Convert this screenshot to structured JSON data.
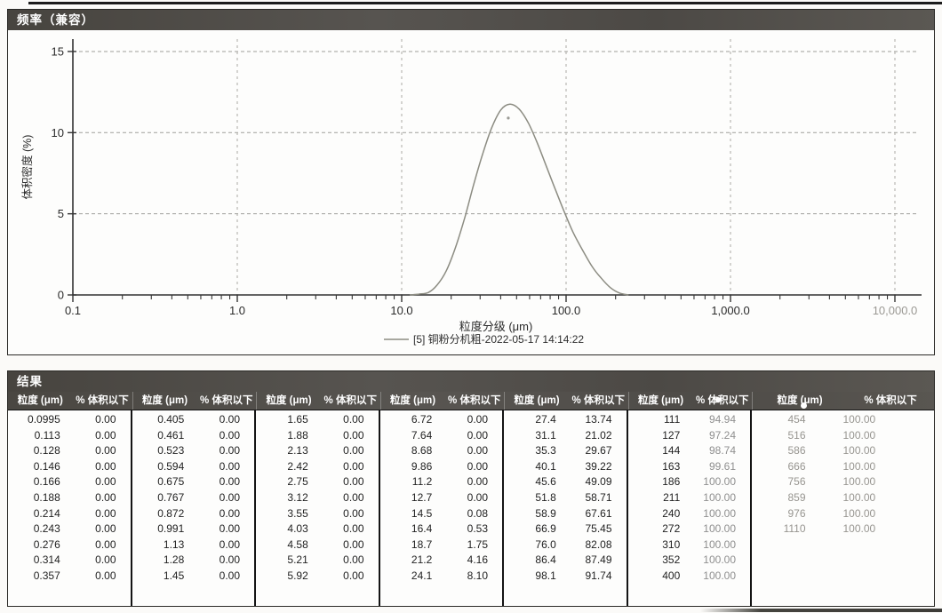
{
  "chart_data": [
    {
      "type": "line",
      "title": "频率（兼容）",
      "xlabel": "粒度分级 (μm)",
      "ylabel": "体积密度 (%)",
      "x_scale": "log",
      "xlim": [
        0.1,
        10000
      ],
      "ylim": [
        0,
        15
      ],
      "x_ticks": [
        "0.1",
        "1.0",
        "10.0",
        "100.0",
        "1,000.0",
        "10,000.0"
      ],
      "y_ticks": [
        "0",
        "5",
        "10",
        "15"
      ],
      "grid": true,
      "legend_position": "bottom-center",
      "series": [
        {
          "name": "[5] 铜粉分机粗-2022-05-17 14:14:22",
          "color": "#8c8c82",
          "points": [
            [
              11.2,
              0
            ],
            [
              12.7,
              0.05
            ],
            [
              14.5,
              0.15
            ],
            [
              16.4,
              0.6
            ],
            [
              18.7,
              1.5
            ],
            [
              21.2,
              2.9
            ],
            [
              24.1,
              4.7
            ],
            [
              27.4,
              6.8
            ],
            [
              31.1,
              8.7
            ],
            [
              35.3,
              10.3
            ],
            [
              40.1,
              11.4
            ],
            [
              45.6,
              11.75
            ],
            [
              51.8,
              11.45
            ],
            [
              58.9,
              10.6
            ],
            [
              66.9,
              9.35
            ],
            [
              76.0,
              7.9
            ],
            [
              86.4,
              6.45
            ],
            [
              98.1,
              5.05
            ],
            [
              111,
              3.8
            ],
            [
              127,
              2.7
            ],
            [
              144,
              1.75
            ],
            [
              163,
              1.05
            ],
            [
              186,
              0.45
            ],
            [
              211,
              0.12
            ],
            [
              240,
              0
            ]
          ]
        }
      ]
    },
    {
      "type": "table",
      "title": "结果",
      "columns": [
        "粒度 (μm)",
        "% 体积以下"
      ],
      "column_groups": [
        [
          [
            "0.0995",
            "0.00"
          ],
          [
            "0.113",
            "0.00"
          ],
          [
            "0.128",
            "0.00"
          ],
          [
            "0.146",
            "0.00"
          ],
          [
            "0.166",
            "0.00"
          ],
          [
            "0.188",
            "0.00"
          ],
          [
            "0.214",
            "0.00"
          ],
          [
            "0.243",
            "0.00"
          ],
          [
            "0.276",
            "0.00"
          ],
          [
            "0.314",
            "0.00"
          ],
          [
            "0.357",
            "0.00"
          ]
        ],
        [
          [
            "0.405",
            "0.00"
          ],
          [
            "0.461",
            "0.00"
          ],
          [
            "0.523",
            "0.00"
          ],
          [
            "0.594",
            "0.00"
          ],
          [
            "0.675",
            "0.00"
          ],
          [
            "0.767",
            "0.00"
          ],
          [
            "0.872",
            "0.00"
          ],
          [
            "0.991",
            "0.00"
          ],
          [
            "1.13",
            "0.00"
          ],
          [
            "1.28",
            "0.00"
          ],
          [
            "1.45",
            "0.00"
          ]
        ],
        [
          [
            "1.65",
            "0.00"
          ],
          [
            "1.88",
            "0.00"
          ],
          [
            "2.13",
            "0.00"
          ],
          [
            "2.42",
            "0.00"
          ],
          [
            "2.75",
            "0.00"
          ],
          [
            "3.12",
            "0.00"
          ],
          [
            "3.55",
            "0.00"
          ],
          [
            "4.03",
            "0.00"
          ],
          [
            "4.58",
            "0.00"
          ],
          [
            "5.21",
            "0.00"
          ],
          [
            "5.92",
            "0.00"
          ]
        ],
        [
          [
            "6.72",
            "0.00"
          ],
          [
            "7.64",
            "0.00"
          ],
          [
            "8.68",
            "0.00"
          ],
          [
            "9.86",
            "0.00"
          ],
          [
            "11.2",
            "0.00"
          ],
          [
            "12.7",
            "0.00"
          ],
          [
            "14.5",
            "0.08"
          ],
          [
            "16.4",
            "0.53"
          ],
          [
            "18.7",
            "1.75"
          ],
          [
            "21.2",
            "4.16"
          ],
          [
            "24.1",
            "8.10"
          ]
        ],
        [
          [
            "27.4",
            "13.74"
          ],
          [
            "31.1",
            "21.02"
          ],
          [
            "35.3",
            "29.67"
          ],
          [
            "40.1",
            "39.22"
          ],
          [
            "45.6",
            "49.09"
          ],
          [
            "51.8",
            "58.71"
          ],
          [
            "58.9",
            "67.61"
          ],
          [
            "66.9",
            "75.45"
          ],
          [
            "76.0",
            "82.08"
          ],
          [
            "86.4",
            "87.49"
          ],
          [
            "98.1",
            "91.74"
          ]
        ],
        [
          [
            "111",
            "94.94"
          ],
          [
            "127",
            "97.24"
          ],
          [
            "144",
            "98.74"
          ],
          [
            "163",
            "99.61"
          ],
          [
            "186",
            "100.00"
          ],
          [
            "211",
            "100.00"
          ],
          [
            "240",
            "100.00"
          ],
          [
            "272",
            "100.00"
          ],
          [
            "310",
            "100.00"
          ],
          [
            "352",
            "100.00"
          ],
          [
            "400",
            "100.00"
          ]
        ],
        [
          [
            "454",
            "100.00"
          ],
          [
            "516",
            "100.00"
          ],
          [
            "586",
            "100.00"
          ],
          [
            "666",
            "100.00"
          ],
          [
            "756",
            "100.00"
          ],
          [
            "859",
            "100.00"
          ],
          [
            "976",
            "100.00"
          ],
          [
            "1110",
            "100.00"
          ]
        ]
      ]
    }
  ]
}
